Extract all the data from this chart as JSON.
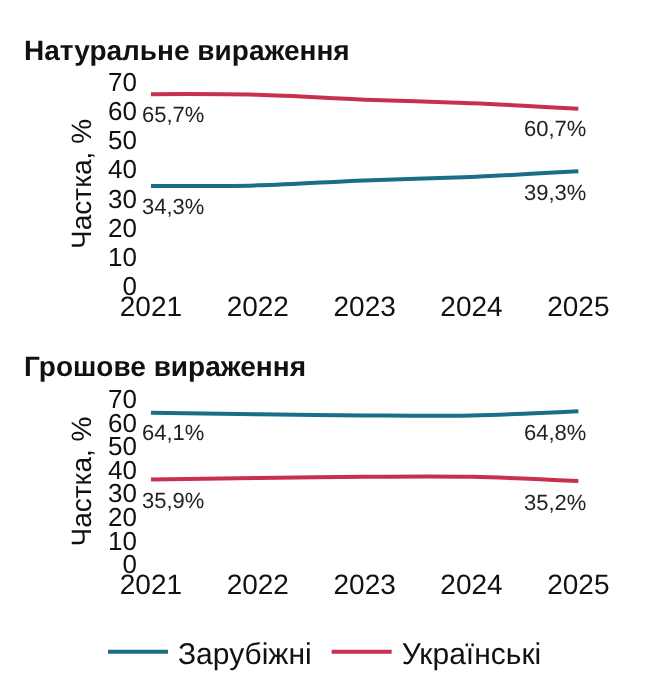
{
  "chart_data": [
    {
      "type": "line",
      "title": "Натуральне вираження",
      "ylabel": "Частка, %",
      "categories": [
        "2021",
        "2022",
        "2023",
        "2024",
        "2025"
      ],
      "ylim": [
        0,
        70
      ],
      "yticks": [
        0,
        10,
        20,
        30,
        40,
        50,
        60,
        70
      ],
      "grid": false,
      "marker": "none",
      "series": [
        {
          "color": "#1a6e86",
          "values": [
            34.3,
            34.5,
            36.2,
            37.4,
            39.3
          ],
          "value_labels": [
            "34,3%",
            null,
            null,
            null,
            "39,3%"
          ]
        },
        {
          "color": "#c8304f",
          "values": [
            65.7,
            65.5,
            63.8,
            62.6,
            60.7
          ],
          "value_labels": [
            "65,7%",
            null,
            null,
            null,
            "60,7%"
          ]
        }
      ]
    },
    {
      "type": "line",
      "title": "Грошове вираження",
      "ylabel": "Частка, %",
      "categories": [
        "2021",
        "2022",
        "2023",
        "2024",
        "2025"
      ],
      "ylim": [
        0,
        70
      ],
      "yticks": [
        0,
        10,
        20,
        30,
        40,
        50,
        60,
        70
      ],
      "grid": false,
      "marker": "none",
      "legend": "bottom",
      "series": [
        {
          "name": "Зарубіжні",
          "color": "#1a6e86",
          "values": [
            64.1,
            63.5,
            63.0,
            63.0,
            64.8
          ],
          "value_labels": [
            "64,1%",
            null,
            null,
            null,
            "64,8%"
          ]
        },
        {
          "name": "Українські",
          "color": "#c8304f",
          "values": [
            35.9,
            36.5,
            37.0,
            37.0,
            35.2
          ],
          "value_labels": [
            "35,9%",
            null,
            null,
            null,
            "35,2%"
          ]
        }
      ]
    }
  ]
}
